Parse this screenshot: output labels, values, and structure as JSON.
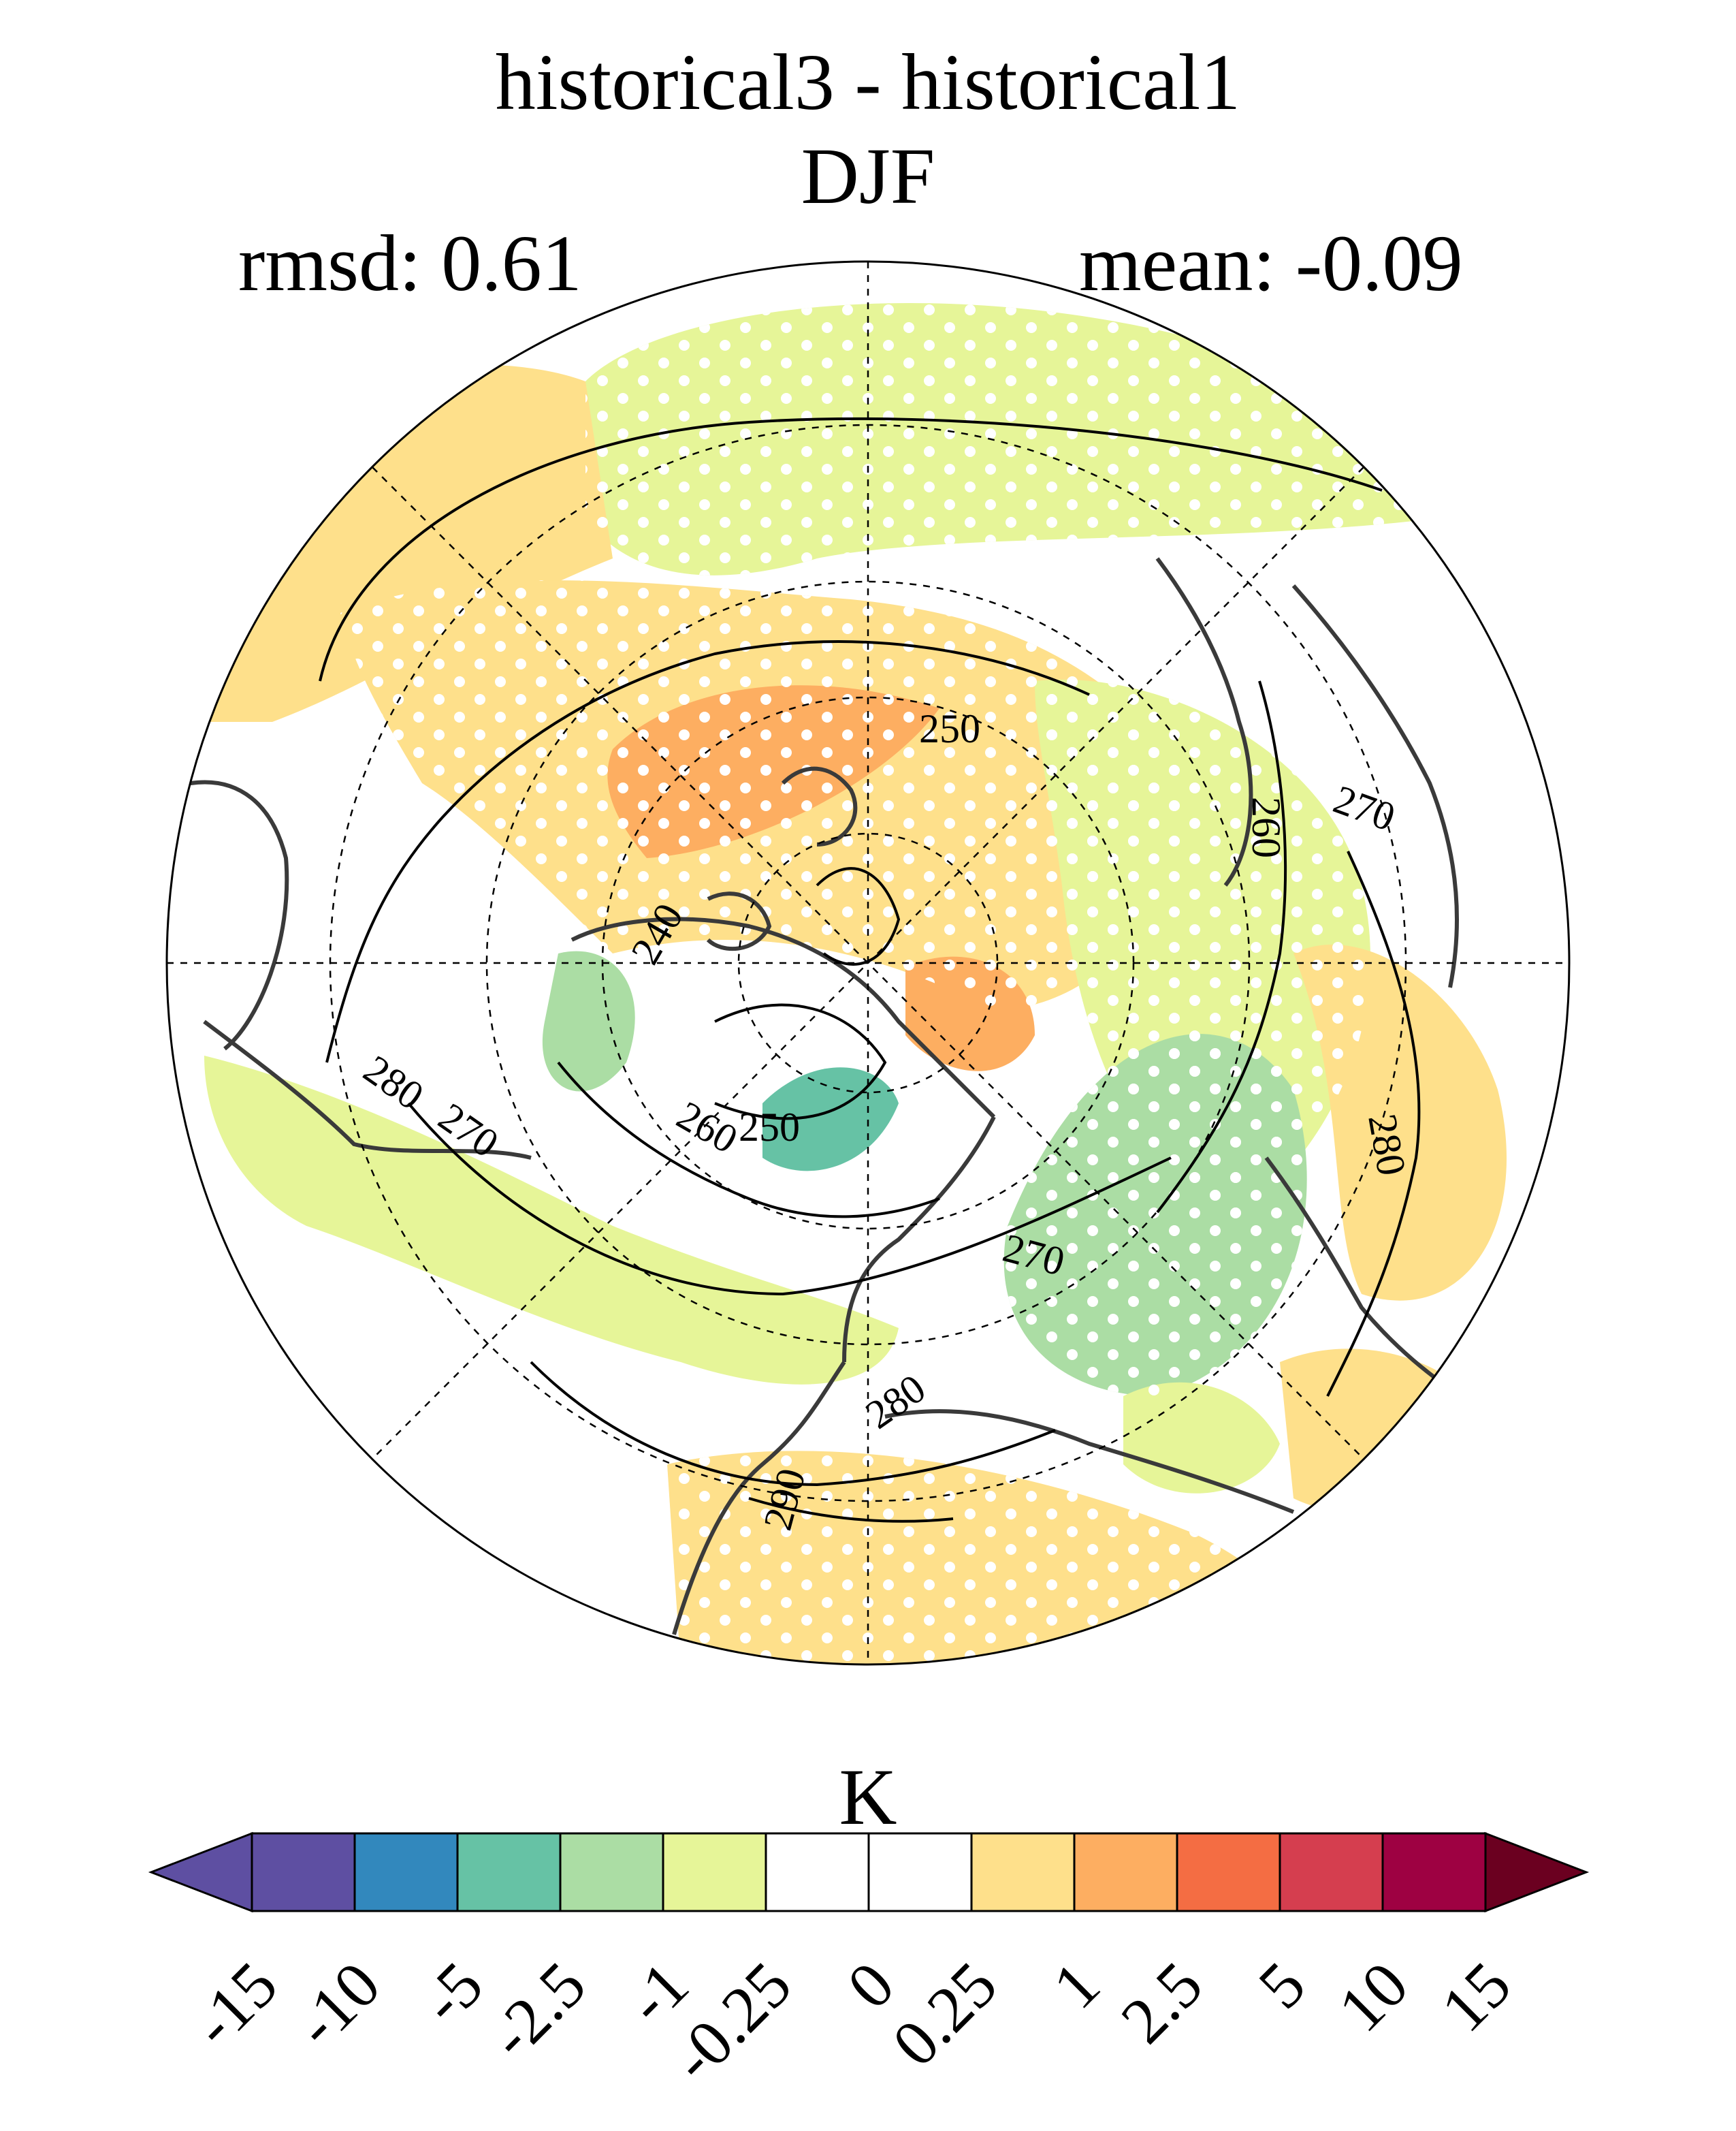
{
  "title": {
    "line1": "historical3 - historical1",
    "line2": "DJF"
  },
  "stats": {
    "rmsd": "rmsd: 0.61",
    "mean": "mean: -0.09"
  },
  "map": {
    "projection": "north polar stereographic",
    "contour_labels": [
      "240",
      "250",
      "250",
      "260",
      "260",
      "270",
      "270",
      "270",
      "280",
      "280",
      "280",
      "290"
    ],
    "stippling": true
  },
  "colorbar": {
    "units": "K",
    "ticks": [
      "-15",
      "-10",
      "-5",
      "-2.5",
      "-1",
      "-0.25",
      "0",
      "0.25",
      "1",
      "2.5",
      "5",
      "10",
      "15"
    ],
    "colors": [
      "#5e4fa2",
      "#5e4fa2",
      "#3288bd",
      "#66c2a5",
      "#abdda4",
      "#e6f598",
      "#ffffff",
      "#ffffff",
      "#fee08b",
      "#fdae61",
      "#f46d43",
      "#d53e4f",
      "#9e0142",
      "#6b0020"
    ],
    "extend": "both"
  }
}
